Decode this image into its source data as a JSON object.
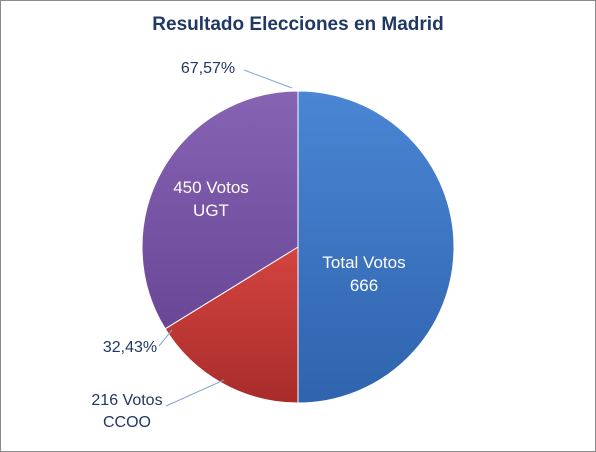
{
  "chart_data": {
    "type": "pie",
    "title": "Resultado Elecciones en Madrid",
    "slices": [
      {
        "label_lines": [
          "Total Votos",
          "666"
        ],
        "value": 666,
        "color": "#3f79c8"
      },
      {
        "label_lines": [
          "216 Votos",
          "CCOO"
        ],
        "value": 216,
        "color": "#c43a37",
        "percent_label": "32,43%"
      },
      {
        "label_lines": [
          "450 Votos",
          "UGT"
        ],
        "value": 450,
        "color": "#7a56a6",
        "percent_label": "67,57%"
      }
    ]
  }
}
